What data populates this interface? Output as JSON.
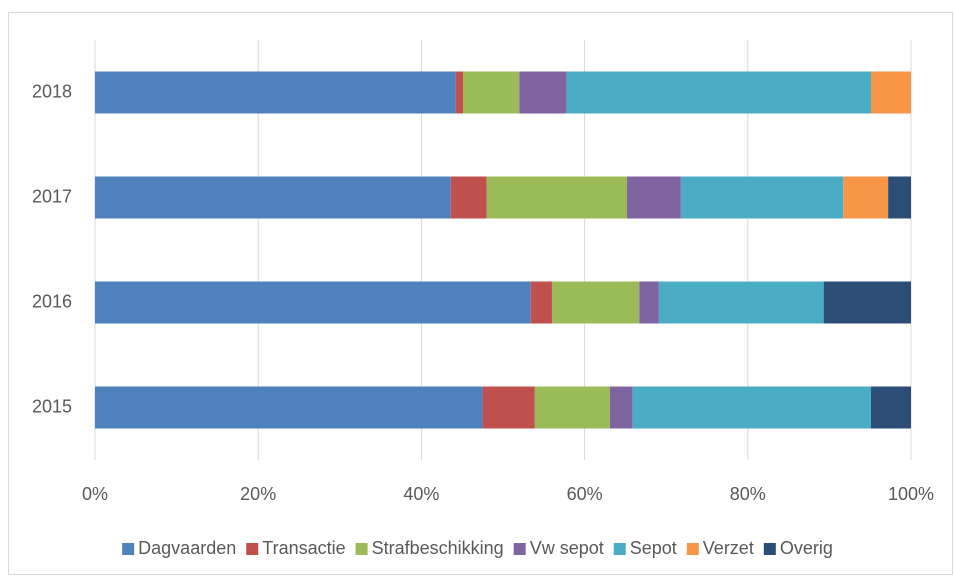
{
  "chart_data": {
    "type": "stacked-bar-horizontal",
    "categories": [
      "2018",
      "2017",
      "2016",
      "2015"
    ],
    "series": [
      {
        "name": "Dagvaarden",
        "color": "#4f81bd",
        "values": [
          44.2,
          43.6,
          53.4,
          47.5
        ]
      },
      {
        "name": "Transactie",
        "color": "#c0504d",
        "values": [
          0.9,
          4.4,
          2.6,
          6.4
        ]
      },
      {
        "name": "Strafbeschikking",
        "color": "#9bbb59",
        "values": [
          6.9,
          17.2,
          10.7,
          9.2
        ]
      },
      {
        "name": "Vw sepot",
        "color": "#8064a2",
        "values": [
          5.8,
          6.6,
          2.4,
          2.8
        ]
      },
      {
        "name": "Sepot",
        "color": "#4bacc6",
        "values": [
          37.3,
          19.9,
          20.2,
          29.2
        ]
      },
      {
        "name": "Verzet",
        "color": "#f79646",
        "values": [
          4.9,
          5.5,
          0,
          0
        ]
      },
      {
        "name": "Overig",
        "color": "#2c4d75",
        "values": [
          0,
          2.8,
          10.7,
          4.9
        ]
      }
    ],
    "xlim": [
      0,
      100
    ],
    "xticks": [
      {
        "value": 0,
        "label": "0%"
      },
      {
        "value": 20,
        "label": "20%"
      },
      {
        "value": 40,
        "label": "40%"
      },
      {
        "value": 60,
        "label": "60%"
      },
      {
        "value": 80,
        "label": "80%"
      },
      {
        "value": 100,
        "label": "100%"
      }
    ],
    "grid": true,
    "legend": "bottom"
  }
}
